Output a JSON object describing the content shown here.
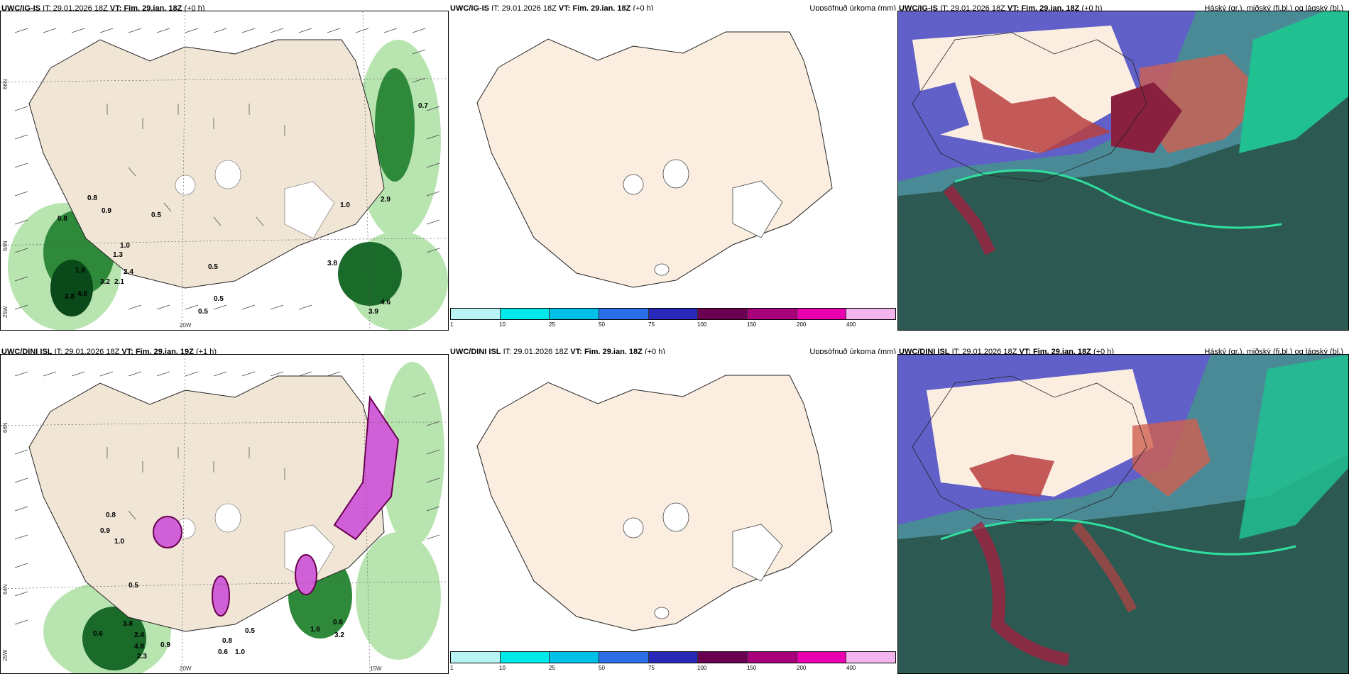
{
  "panels": {
    "top_left": {
      "model": "UWC/IG-IS",
      "it_label": "IT:",
      "it": "29.01.2026 18Z",
      "vt_label": "VT:",
      "vt": "Fim. 29.jan. 18Z",
      "lead": "(+0 h)"
    },
    "top_mid": {
      "model": "UWC/IG-IS",
      "it_label": "IT:",
      "it": "29.01.2026 18Z",
      "vt_label": "VT:",
      "vt": "Fim. 29.jan. 18Z",
      "lead": "(+0 h)",
      "field": "Uppsöfnuð úrkoma (mm)"
    },
    "top_right": {
      "model": "UWC/IG-IS",
      "it_label": "IT:",
      "it": "29.01.2026 18Z",
      "vt_label": "VT:",
      "vt": "Fim. 29.jan. 18Z",
      "lead": "(+0 h)",
      "field": "Háský (gr.), miðský (fj.bl.) og lágský (bl.)"
    },
    "bot_left": {
      "model": "UWC/DINI ISL",
      "it_label": "IT:",
      "it": "29.01.2026 18Z",
      "vt_label": "VT:",
      "vt": "Fim. 29.jan. 19Z",
      "lead": "(+1 h)"
    },
    "bot_mid": {
      "model": "UWC/DINI ISL",
      "it_label": "IT:",
      "it": "29.01.2026 18Z",
      "vt_label": "VT:",
      "vt": "Fim. 29.jan. 18Z",
      "lead": "(+0 h)",
      "field": "Uppsöfnuð úrkoma (mm)"
    },
    "bot_right": {
      "model": "UWC/DINI ISL",
      "it_label": "IT:",
      "it": "29.01.2026 18Z",
      "vt_label": "VT:",
      "vt": "Fim. 29.jan. 18Z",
      "lead": "(+0 h)",
      "field": "Háský (gr.), miðský (fj.bl.) og lágský (bl.)"
    }
  },
  "axes": {
    "lat_66": "66N",
    "lat_64": "64N",
    "lon_20": "20W",
    "lon_25": "25W",
    "lon_15": "15W"
  },
  "colorbar": {
    "colors": [
      "#b8f4f4",
      "#00e8e8",
      "#00c0e8",
      "#2a6ee8",
      "#2828b8",
      "#6a0050",
      "#a8007a",
      "#e800b0",
      "#f4b4ee"
    ],
    "ticks": [
      "1",
      "10",
      "25",
      "50",
      "75",
      "100",
      "150",
      "200",
      "400"
    ]
  },
  "precip_values_top": [
    "0.7",
    "0.8",
    "0.9",
    "1.0",
    "1.3",
    "0.5",
    "0.8",
    "1.9",
    "2.4",
    "3.2",
    "3.8",
    "4.0",
    "2.1",
    "0.5",
    "0.5",
    "0.5",
    "3.8",
    "1.0",
    "2.9",
    "4.6",
    "3.9"
  ],
  "precip_values_bottom": [
    "0.8",
    "0.9",
    "1.0",
    "0.5",
    "0.6",
    "3.8",
    "2.4",
    "4.8",
    "2.3",
    "0.9",
    "0.8",
    "0.6",
    "1.0",
    "0.5",
    "0.6",
    "1.6",
    "3.2"
  ],
  "colors": {
    "land": "#f1e5d6",
    "land_plain": "#fbeee1",
    "green_light": "#b8e4b0",
    "green_dark": "#0a4a1a",
    "cloud_dark": "#2c5a52",
    "cloud_blue": "#6060c8",
    "cloud_red": "#b84040"
  }
}
